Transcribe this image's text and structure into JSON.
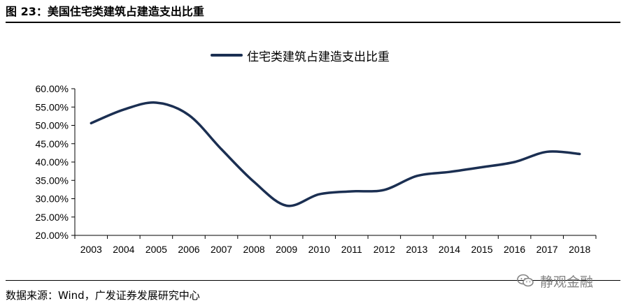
{
  "figure": {
    "title": "图 23：美国住宅类建筑占建造支出比重",
    "source": "数据来源：Wind，广发证券发展研究中心",
    "watermark": "静观金融",
    "watermark_icon": "wechat-icon"
  },
  "colors": {
    "series": "#1b2f52",
    "axis": "#000000",
    "text": "#000000"
  },
  "chart_data": {
    "type": "line",
    "title": "",
    "xlabel": "",
    "ylabel": "",
    "legend": "top-center",
    "grid": false,
    "categories": [
      "2003",
      "2004",
      "2005",
      "2006",
      "2007",
      "2008",
      "2009",
      "2010",
      "2011",
      "2012",
      "2013",
      "2014",
      "2015",
      "2016",
      "2017",
      "2018"
    ],
    "ylim": [
      20,
      60
    ],
    "y_ticks": [
      20,
      25,
      30,
      35,
      40,
      45,
      50,
      55,
      60
    ],
    "y_tick_labels": [
      "20.00%",
      "25.00%",
      "30.00%",
      "35.00%",
      "40.00%",
      "45.00%",
      "50.00%",
      "55.00%",
      "60.00%"
    ],
    "series": [
      {
        "name": "住宅类建筑占建造支出比重",
        "values": [
          50.6,
          54.3,
          56.2,
          52.8,
          43.5,
          34.6,
          28.1,
          31.2,
          32.0,
          32.4,
          36.2,
          37.3,
          38.6,
          40.0,
          42.8,
          42.2
        ]
      }
    ]
  }
}
